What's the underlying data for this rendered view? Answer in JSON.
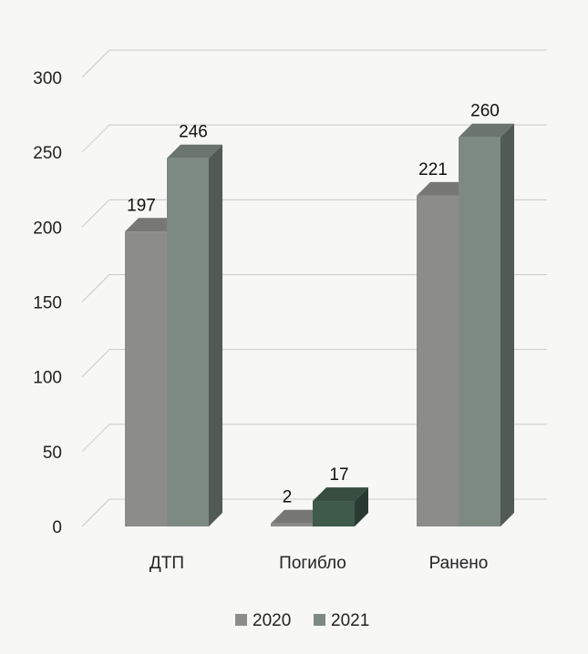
{
  "chart_data": {
    "type": "bar",
    "style": "3d-clustered-column",
    "categories": [
      "ДТП",
      "Погибло",
      "Ранено"
    ],
    "series": [
      {
        "name": "2020",
        "values": [
          197,
          2,
          221
        ]
      },
      {
        "name": "2021",
        "values": [
          246,
          17,
          260
        ]
      }
    ],
    "ylim": [
      0,
      300
    ],
    "yticks": [
      "0",
      "50",
      "100",
      "150",
      "200",
      "250",
      "300"
    ],
    "grid": true,
    "legend_position": "bottom",
    "colors": {
      "series_2020": "#8c8c8a",
      "series_2021": "#7d8a82",
      "series_2021_highlight": "#3f5a4a",
      "gridline": "#c8c8c8",
      "background": "#f7f7f6"
    }
  }
}
